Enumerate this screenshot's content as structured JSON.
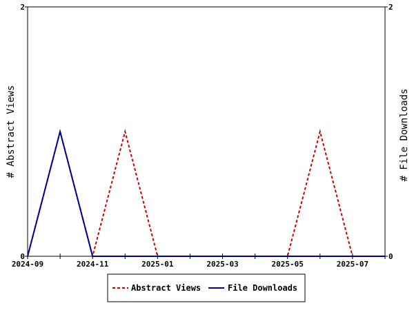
{
  "chart_data": {
    "type": "line",
    "x": [
      "2024-09",
      "2024-10",
      "2024-11",
      "2024-12",
      "2025-01",
      "2025-02",
      "2025-03",
      "2025-04",
      "2025-05",
      "2025-06",
      "2025-07",
      "2025-08"
    ],
    "series": [
      {
        "name": "Abstract Views",
        "axis": "left",
        "color": "#cc0000",
        "style": "dashed",
        "values": [
          0,
          1,
          0,
          1,
          0,
          0,
          0,
          0,
          0,
          1,
          0,
          0
        ]
      },
      {
        "name": "File Downloads",
        "axis": "right",
        "color": "#000099",
        "style": "solid",
        "values": [
          0,
          1,
          0,
          0,
          0,
          0,
          0,
          0,
          0,
          0,
          0,
          0
        ]
      }
    ],
    "xtick_labels": [
      "2024-09",
      "2024-11",
      "2025-01",
      "2025-03",
      "2025-05",
      "2025-07"
    ],
    "ylabel": "# Abstract Views",
    "y2label": "# File Downloads",
    "ylim": [
      0,
      2
    ],
    "y2lim": [
      0,
      2
    ],
    "ytick_labels": [
      "0",
      "2"
    ],
    "y2tick_labels": [
      "0",
      "2"
    ],
    "grid": false,
    "legend": "bottom"
  }
}
